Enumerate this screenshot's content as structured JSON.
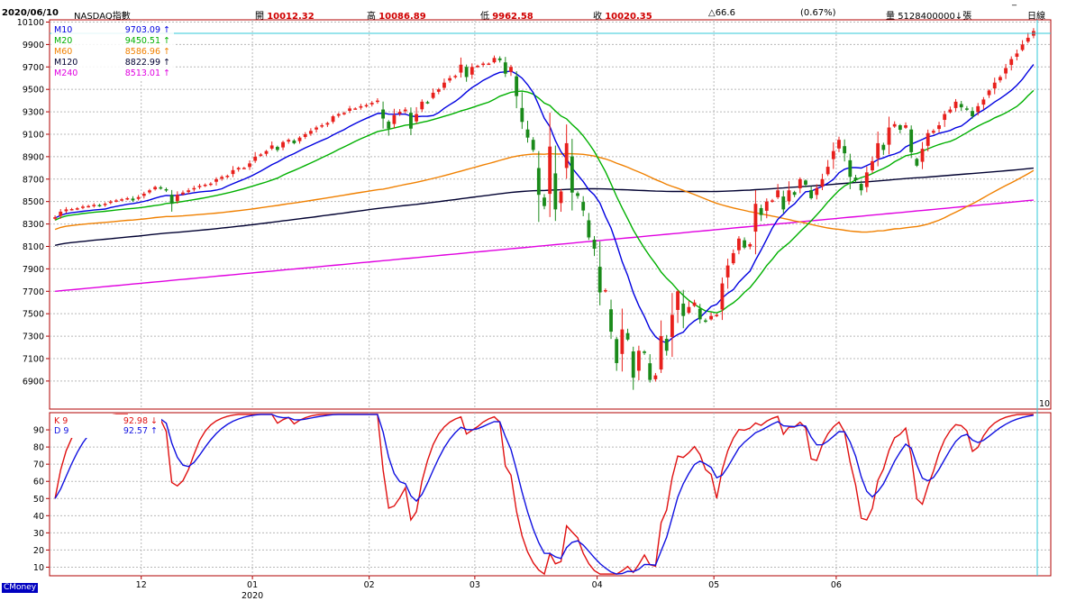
{
  "header": {
    "date": "2020/06/10",
    "symbol": "NASDAQ指數",
    "open_label": "開",
    "open": "10012.32",
    "high_label": "高",
    "high": "10086.89",
    "low_label": "低",
    "low": "9962.58",
    "close_label": "收",
    "close": "10020.35",
    "change": "△66.6",
    "change_pct": "(0.67%)",
    "volume_label": "量",
    "volume": "5128400000↓張",
    "period": "日線"
  },
  "brand": "CMoney",
  "colors": {
    "up": "#e8201c",
    "down": "#1a8a1a",
    "M10": "#0000e0",
    "M20": "#00b000",
    "M60": "#f08000",
    "M120": "#000030",
    "M240": "#e000e0",
    "K": "#e01010",
    "D": "#1010e0",
    "frame": "#b00000",
    "cursor": "#30c8d8",
    "grid": "#b8b8b8"
  },
  "chart_data": [
    {
      "type": "candlestick",
      "title": "NASDAQ指數",
      "period": "日線",
      "ylim": [
        6650,
        10120
      ],
      "y_ticks": [
        6900,
        7100,
        7300,
        7500,
        7700,
        7900,
        8100,
        8300,
        8500,
        8700,
        8900,
        9100,
        9300,
        9500,
        9700,
        9900,
        10100
      ],
      "x_tick_labels": [
        "12",
        "01",
        "02",
        "03",
        "04",
        "05",
        "06"
      ],
      "year_label": "2020",
      "cursor_label": "10",
      "legend": [
        {
          "name": "M10",
          "value": "9703.09",
          "arrow": "↑"
        },
        {
          "name": "M20",
          "value": "9450.51",
          "arrow": "↑"
        },
        {
          "name": "M60",
          "value": "8586.96",
          "arrow": "↑"
        },
        {
          "name": "M120",
          "value": "8822.99",
          "arrow": "↑"
        },
        {
          "name": "M240",
          "value": "8513.01",
          "arrow": "↑"
        }
      ],
      "close": [
        8360,
        8410,
        8430,
        8433,
        8440,
        8455,
        8460,
        8470,
        8465,
        8480,
        8500,
        8510,
        8520,
        8530,
        8510,
        8540,
        8570,
        8600,
        8630,
        8620,
        8600,
        8480,
        8560,
        8580,
        8600,
        8620,
        8640,
        8650,
        8660,
        8700,
        8720,
        8730,
        8780,
        8800,
        8800,
        8840,
        8900,
        8920,
        8950,
        9000,
        8960,
        9030,
        9050,
        9020,
        9070,
        9100,
        9130,
        9160,
        9180,
        9200,
        9260,
        9280,
        9290,
        9330,
        9330,
        9350,
        9360,
        9380,
        9400,
        9240,
        9150,
        9270,
        9300,
        9320,
        9150,
        9280,
        9390,
        9380,
        9470,
        9500,
        9560,
        9600,
        9620,
        9720,
        9610,
        9700,
        9710,
        9730,
        9730,
        9780,
        9760,
        9640,
        9700,
        9440,
        9210,
        9070,
        8960,
        8560,
        8460,
        8990,
        8430,
        8590,
        9020,
        8580,
        8550,
        8420,
        8180,
        8080,
        7690,
        7710,
        7340,
        7060,
        7360,
        7270,
        6930,
        7170,
        7150,
        6910,
        6950,
        7300,
        7170,
        7490,
        7700,
        7480,
        7560,
        7600,
        7450,
        7430,
        7480,
        7490,
        7770,
        7930,
        8040,
        8170,
        8090,
        8120,
        8480,
        8380,
        8500,
        8510,
        8600,
        8430,
        8600,
        8560,
        8700,
        8650,
        8530,
        8620,
        8700,
        8810,
        8950,
        9050,
        8930,
        8720,
        8690,
        8600,
        8760,
        8860,
        9020,
        8960,
        9160,
        9190,
        9140,
        9180,
        8940,
        8820,
        8970,
        9110,
        9130,
        9180,
        9280,
        9320,
        9390,
        9340,
        9320,
        9260,
        9350,
        9410,
        9490,
        9560,
        9610,
        9690,
        9770,
        9820,
        9900,
        9960,
        10020
      ],
      "ma_M10_endpoints": [
        8240,
        9703
      ],
      "ma_M20_endpoints": [
        8130,
        9450
      ],
      "ma_M60_endpoints": [
        8040,
        8587
      ],
      "ma_M120_endpoints": [
        7990,
        8823
      ],
      "ma_M240_endpoints": [
        7700,
        8513
      ]
    },
    {
      "type": "line",
      "title": "KD",
      "ylim": [
        5,
        100
      ],
      "y_ticks": [
        10,
        20,
        30,
        40,
        50,
        60,
        70,
        80,
        90
      ],
      "legend": [
        {
          "name": "K 9",
          "value": "92.98",
          "arrow": "↓"
        },
        {
          "name": "D 9",
          "value": "92.57",
          "arrow": "↑"
        }
      ]
    }
  ]
}
